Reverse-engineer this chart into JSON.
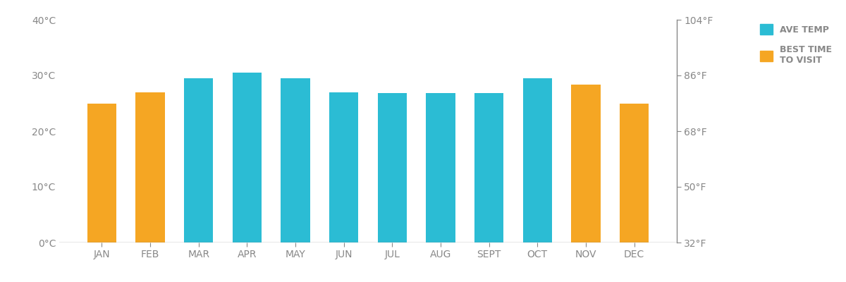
{
  "months": [
    "JAN",
    "FEB",
    "MAR",
    "APR",
    "MAY",
    "JUN",
    "JUL",
    "AUG",
    "SEPT",
    "OCT",
    "NOV",
    "DEC"
  ],
  "temps_c": [
    25,
    27,
    29.5,
    30.5,
    29.5,
    27,
    26.8,
    26.8,
    26.8,
    29.5,
    28.3,
    25
  ],
  "best_time": [
    true,
    true,
    false,
    false,
    false,
    false,
    false,
    false,
    false,
    false,
    true,
    true
  ],
  "color_teal": "#2BBCD4",
  "color_orange": "#F5A623",
  "ylim_c": [
    0,
    40
  ],
  "yticks_c": [
    0,
    10,
    20,
    30,
    40
  ],
  "ytick_labels_c": [
    "0°C",
    "10°C",
    "20°C",
    "30°C",
    "40°C"
  ],
  "yticks_f_labels": [
    "32°F",
    "50°F",
    "68°F",
    "86°F",
    "104°F"
  ],
  "yticks_f_values": [
    32,
    50,
    68,
    86,
    104
  ],
  "legend_ave_temp": "AVE TEMP",
  "legend_best_time": "BEST TIME\nTO VISIT",
  "axis_color": "#888888",
  "background_color": "#ffffff",
  "bar_width": 0.6
}
